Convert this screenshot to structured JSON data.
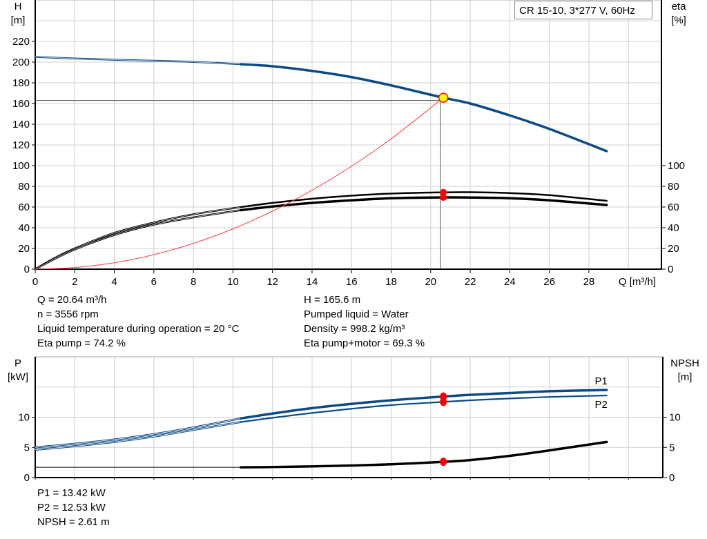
{
  "legend_title": "CR 15-10, 3*277 V, 60Hz",
  "colors": {
    "head": "#0b4a85",
    "power": "#0b4a85",
    "efficiency": "#000000",
    "npsh": "#000000",
    "system_curve": "#ff3b3b",
    "operating_point": "#ffff00",
    "marker": "#ff0000",
    "grid": "#d0d0d0"
  },
  "chart_data": [
    {
      "type": "line",
      "ylabel": "H\n[m]",
      "ylabel_lines": [
        "H",
        "[m]"
      ],
      "y2label_lines": [
        "eta",
        "[%]"
      ],
      "xlabel": "Q [m³/h]",
      "xlim": [
        0,
        31.3
      ],
      "ylim": [
        0,
        260
      ],
      "y2lim": [
        0,
        260
      ],
      "xticks": [
        0,
        2,
        4,
        6,
        8,
        10,
        12,
        14,
        16,
        18,
        20,
        22,
        24,
        26,
        28
      ],
      "yticks": [
        0,
        20,
        40,
        60,
        80,
        100,
        120,
        140,
        160,
        180,
        200,
        220
      ],
      "y2ticks": [
        0,
        20,
        40,
        60,
        80,
        100
      ],
      "grid": true,
      "series": [
        {
          "key": "head",
          "axis": "left",
          "x": [
            0,
            2,
            4,
            6,
            8,
            10.4,
            12,
            14,
            16,
            18,
            20.64,
            22,
            24,
            26,
            28.9
          ],
          "y": [
            205,
            203.5,
            202.3,
            201.3,
            200.2,
            198,
            196,
            191.5,
            185.5,
            177.5,
            165.6,
            160,
            148.5,
            135.5,
            114
          ],
          "thin_until": 10.4
        },
        {
          "key": "eta-pump",
          "axis": "right",
          "x": [
            0,
            1,
            2,
            4,
            6,
            8,
            10.4,
            12,
            14,
            16,
            18,
            20.64,
            22,
            24,
            26,
            28.9
          ],
          "y": [
            0,
            11,
            20,
            35,
            45,
            53,
            60,
            64,
            68,
            71,
            73,
            74.2,
            74.3,
            73.5,
            71.5,
            66
          ],
          "thin_until": 10.4
        },
        {
          "key": "eta-pump-motor",
          "axis": "right",
          "x": [
            0,
            1,
            2,
            4,
            6,
            8,
            10.4,
            12,
            14,
            16,
            18,
            20.64,
            22,
            24,
            26,
            28.9
          ],
          "y": [
            0,
            10,
            19,
            33,
            43,
            50,
            57,
            60.5,
            64,
            66.5,
            68.5,
            69.3,
            69.2,
            68.5,
            66.5,
            62
          ],
          "thin_until": 10.4
        },
        {
          "key": "system-curve",
          "axis": "left",
          "x": [
            0,
            2,
            4,
            6,
            8,
            10,
            12,
            14,
            16,
            18,
            20.64
          ],
          "y": [
            0,
            1.6,
            6.2,
            14,
            24.9,
            38.9,
            56,
            76.2,
            99.5,
            125.9,
            165.6
          ]
        }
      ],
      "operating_point": {
        "Q": 20.64,
        "H": 165.6,
        "eta_pump": 74.2,
        "eta_pump_motor": 69.3
      }
    },
    {
      "type": "line",
      "ylabel_lines": [
        "P",
        "[kW]"
      ],
      "y2label_lines": [
        "NPSH",
        "[m]"
      ],
      "xlim": [
        0,
        31.3
      ],
      "ylim": [
        0,
        20
      ],
      "y2lim": [
        0,
        20
      ],
      "yticks": [
        0,
        5,
        10
      ],
      "y2ticks": [
        0,
        5,
        10
      ],
      "grid": true,
      "series": [
        {
          "key": "p1",
          "name": "P1",
          "axis": "left",
          "x": [
            0,
            2,
            4,
            6,
            8,
            10.4,
            12,
            14,
            16,
            18,
            20.64,
            22,
            24,
            26,
            28.9
          ],
          "y": [
            5.0,
            5.6,
            6.3,
            7.2,
            8.3,
            9.8,
            10.6,
            11.5,
            12.2,
            12.8,
            13.42,
            13.7,
            14.0,
            14.3,
            14.5
          ],
          "thin_until": 10.4
        },
        {
          "key": "p2",
          "name": "P2",
          "axis": "left",
          "x": [
            0,
            2,
            4,
            6,
            8,
            10.4,
            12,
            14,
            16,
            18,
            20.64,
            22,
            24,
            26,
            28.9
          ],
          "y": [
            4.6,
            5.2,
            5.9,
            6.8,
            7.9,
            9.2,
            9.9,
            10.7,
            11.4,
            12.0,
            12.53,
            12.8,
            13.1,
            13.35,
            13.6
          ],
          "thin_until": 10.4
        },
        {
          "key": "npsh",
          "axis": "right",
          "x": [
            0,
            10.4,
            12,
            14,
            16,
            18,
            20.64,
            22,
            24,
            26,
            28.9
          ],
          "y": [
            1.7,
            1.7,
            1.75,
            1.85,
            2.0,
            2.2,
            2.61,
            2.9,
            3.6,
            4.5,
            5.9
          ],
          "thin_until": 10.4
        }
      ],
      "operating_point": {
        "P1": 13.42,
        "P2": 12.53,
        "NPSH": 2.61
      }
    }
  ],
  "info_top_left": [
    "Q = 20.64 m³/h",
    "n = 3556 rpm",
    "Liquid temperature during operation = 20 °C",
    "Eta pump = 74.2 %"
  ],
  "info_top_right": [
    "H = 165.6 m",
    "Pumped liquid = Water",
    "Density = 998.2 kg/m³",
    "Eta pump+motor = 69.3 %"
  ],
  "info_bottom": [
    "P1 = 13.42 kW",
    "P2 = 12.53 kW",
    "NPSH = 2.61 m"
  ]
}
